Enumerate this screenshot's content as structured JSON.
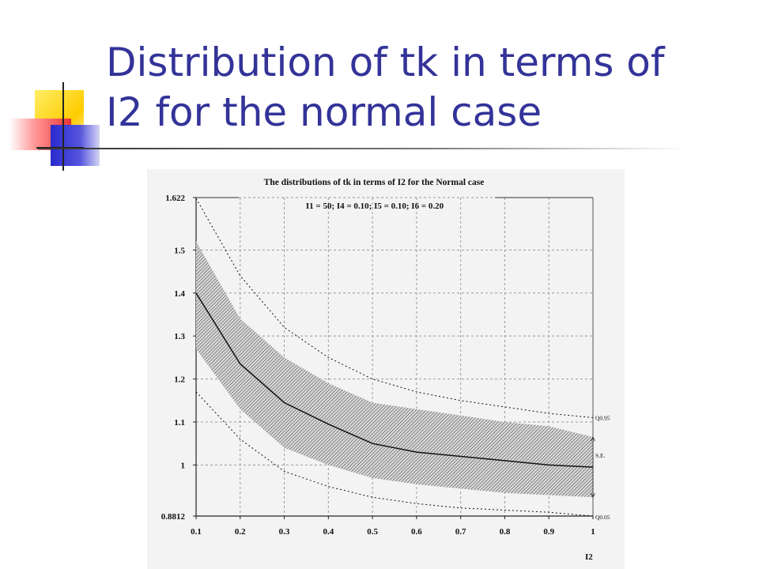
{
  "slide": {
    "title_line1": "Distribution of tk in terms of",
    "title_line2": "I2 for the normal case"
  },
  "chart_data": {
    "type": "line",
    "title": "The distributions of tk in terms of I2 for the Normal case",
    "subtitle": "I1 = 50; I4 = 0.10; I5 = 0.10; I6 = 0.20",
    "xlabel": "I2",
    "ylabel": "",
    "xlim": [
      0.1,
      1.0
    ],
    "ylim": [
      0.8812,
      1.622
    ],
    "grid": true,
    "x": [
      0.1,
      0.2,
      0.3,
      0.4,
      0.5,
      0.6,
      0.7,
      0.8,
      0.9,
      1.0
    ],
    "x_tick_labels": [
      "0.1",
      "0.2",
      "0.3",
      "0.4",
      "0.5",
      "0.6",
      "0.7",
      "0.8",
      "0.9",
      "1"
    ],
    "y_ticks": [
      0.8812,
      1.0,
      1.1,
      1.2,
      1.3,
      1.4,
      1.5,
      1.622
    ],
    "y_tick_labels": [
      "0.8812",
      "1",
      "1.1",
      "1.2",
      "1.3",
      "1.4",
      "1.5",
      "1.622"
    ],
    "series": [
      {
        "name": "Q0.95",
        "style": "dotted",
        "values": [
          1.62,
          1.44,
          1.32,
          1.25,
          1.2,
          1.17,
          1.15,
          1.135,
          1.12,
          1.11
        ]
      },
      {
        "style": "solid",
        "values": [
          1.4,
          1.235,
          1.145,
          1.095,
          1.05,
          1.03,
          1.02,
          1.01,
          1.0,
          0.995
        ]
      },
      {
        "name": "Q0.05",
        "style": "dotted",
        "values": [
          1.17,
          1.06,
          0.985,
          0.95,
          0.925,
          0.91,
          0.9,
          0.895,
          0.89,
          0.8812
        ]
      }
    ],
    "band": {
      "name": "S.E.",
      "fill": "hatched",
      "upper": [
        1.52,
        1.34,
        1.25,
        1.19,
        1.145,
        1.13,
        1.115,
        1.1,
        1.09,
        1.065
      ],
      "lower": [
        1.27,
        1.13,
        1.04,
        1.0,
        0.97,
        0.955,
        0.945,
        0.935,
        0.93,
        0.925
      ]
    },
    "right_labels": [
      "Q0.95",
      "S.E.",
      "Q0.05"
    ]
  }
}
